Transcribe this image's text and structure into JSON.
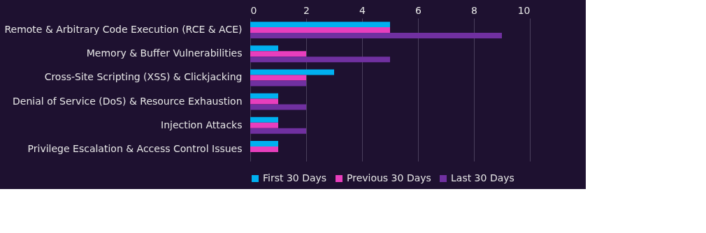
{
  "chart_data": {
    "type": "bar",
    "orientation": "horizontal",
    "categories": [
      "Remote & Arbitrary Code Execution (RCE & ACE)",
      "Memory & Buffer Vulnerabilities",
      "Cross-Site Scripting (XSS) & Clickjacking",
      "Denial of Service (DoS) & Resource Exhaustion",
      "Injection Attacks",
      "Privilege Escalation & Access Control Issues"
    ],
    "series": [
      {
        "name": "First 30 Days",
        "color": "#00b0f0",
        "values": [
          5,
          1,
          3,
          1,
          1,
          1
        ]
      },
      {
        "name": "Previous 30 Days",
        "color": "#e83ebd",
        "values": [
          5,
          2,
          2,
          1,
          1,
          1
        ]
      },
      {
        "name": "Last 30 Days",
        "color": "#7030a0",
        "values": [
          9,
          5,
          2,
          2,
          2,
          0
        ]
      }
    ],
    "xlim": [
      0,
      10
    ],
    "xticks": [
      0,
      2,
      4,
      6,
      8,
      10
    ],
    "grid": "x",
    "legend": "bottom"
  }
}
